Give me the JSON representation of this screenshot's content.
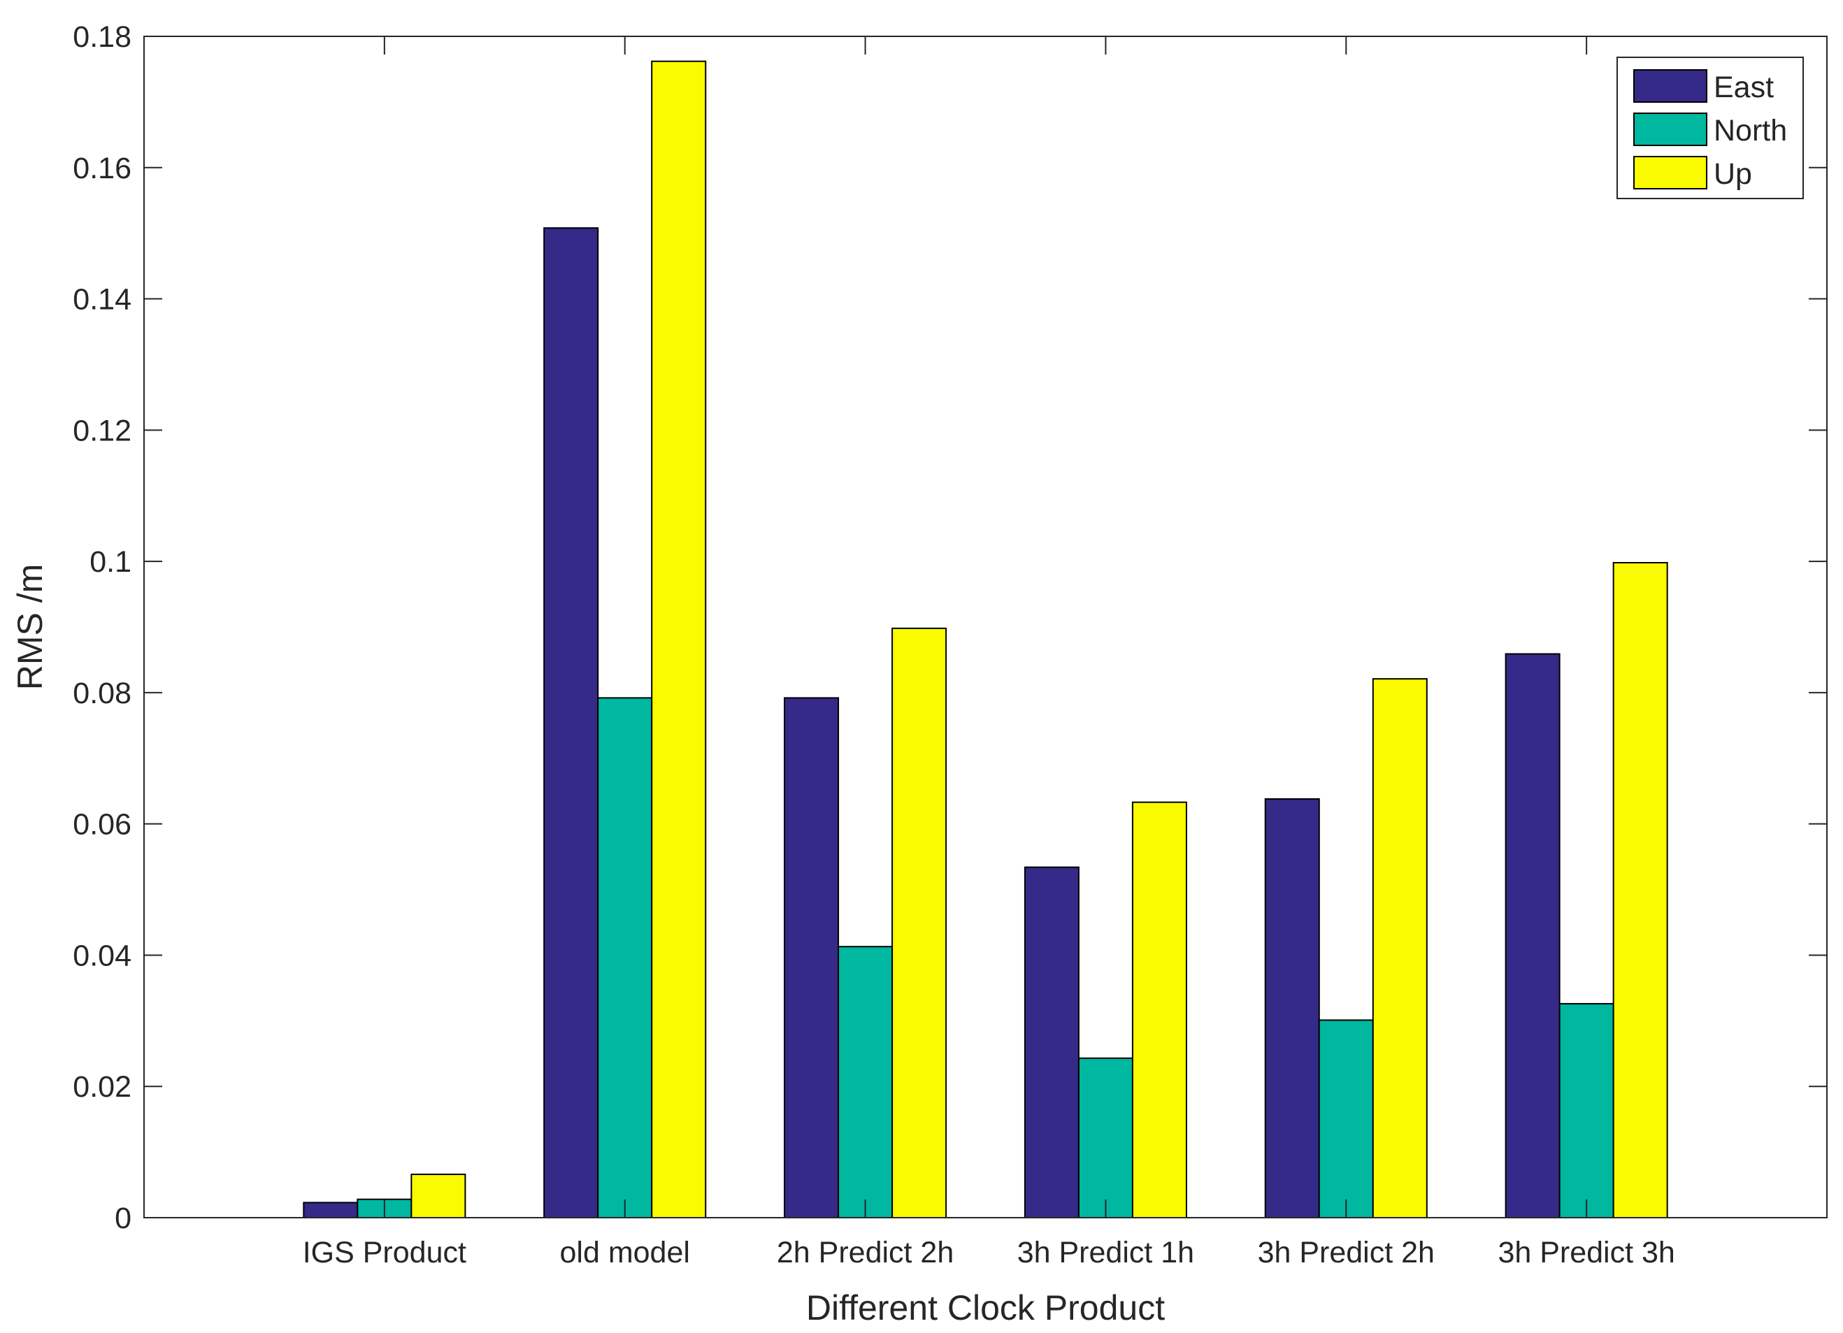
{
  "chart_data": {
    "type": "bar",
    "title": "",
    "xlabel": "Different Clock Product",
    "ylabel": "RMS /m",
    "categories": [
      "IGS Product",
      "old model",
      "2h Predict 2h",
      "3h Predict 1h",
      "3h Predict 2h",
      "3h Predict 3h"
    ],
    "series": [
      {
        "name": "East",
        "color": "#352a87",
        "values": [
          0.0023,
          0.1508,
          0.0792,
          0.0534,
          0.0638,
          0.0859
        ]
      },
      {
        "name": "North",
        "color": "#00b7a0",
        "values": [
          0.0028,
          0.0792,
          0.0413,
          0.0243,
          0.0301,
          0.0326
        ]
      },
      {
        "name": "Up",
        "color": "#fafa00",
        "values": [
          0.0066,
          0.1762,
          0.0898,
          0.0633,
          0.0821,
          0.0998
        ]
      }
    ],
    "x_range": [
      0,
      7
    ],
    "ylim": [
      0,
      0.18
    ],
    "yticks": [
      "0",
      "0.02",
      "0.04",
      "0.06",
      "0.08",
      "0.1",
      "0.12",
      "0.14",
      "0.16",
      "0.18"
    ],
    "ytick_values": [
      0,
      0.02,
      0.04,
      0.06,
      0.08,
      0.1,
      0.12,
      0.14,
      0.16,
      0.18
    ],
    "grid": false,
    "legend_position": "top-right"
  }
}
